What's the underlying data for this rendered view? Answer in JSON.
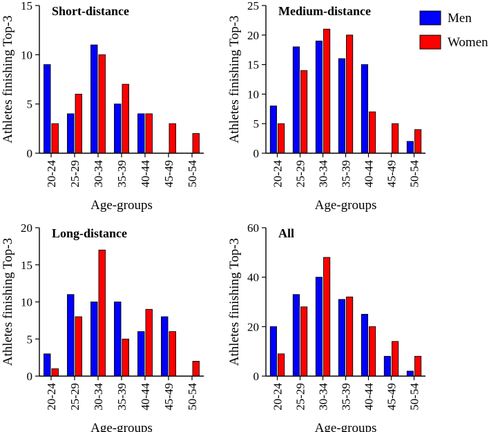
{
  "legend": {
    "items": [
      {
        "name": "Men",
        "color": "#0000ff"
      },
      {
        "name": "Women",
        "color": "#ff0000"
      }
    ]
  },
  "chart_data": [
    {
      "type": "bar",
      "title": "Short-distance",
      "xlabel": "Age-groups",
      "ylabel": "Athletes finishing Top-3",
      "categories": [
        "20-24",
        "25-29",
        "30-34",
        "35-39",
        "40-44",
        "45-49",
        "50-54"
      ],
      "ylim": [
        0,
        15
      ],
      "yticks": [
        0,
        5,
        10,
        15
      ],
      "series": [
        {
          "name": "Men",
          "color": "#0000ff",
          "values": [
            9,
            4,
            11,
            5,
            4,
            0,
            0
          ]
        },
        {
          "name": "Women",
          "color": "#ff0000",
          "values": [
            3,
            6,
            10,
            7,
            4,
            3,
            2
          ]
        }
      ]
    },
    {
      "type": "bar",
      "title": "Medium-distance",
      "xlabel": "Age-groups",
      "ylabel": "Athletes finishing Top-3",
      "categories": [
        "20-24",
        "25-29",
        "30-34",
        "35-39",
        "40-44",
        "45-49",
        "50-54"
      ],
      "ylim": [
        0,
        25
      ],
      "yticks": [
        0,
        5,
        10,
        15,
        20,
        25
      ],
      "series": [
        {
          "name": "Men",
          "color": "#0000ff",
          "values": [
            8,
            18,
            19,
            16,
            15,
            0,
            2
          ]
        },
        {
          "name": "Women",
          "color": "#ff0000",
          "values": [
            5,
            14,
            21,
            20,
            7,
            5,
            4
          ]
        }
      ]
    },
    {
      "type": "bar",
      "title": "Long-distance",
      "xlabel": "Age-groups",
      "ylabel": "Athletes finishing Top-3",
      "categories": [
        "20-24",
        "25-29",
        "30-34",
        "35-39",
        "40-44",
        "45-49",
        "50-54"
      ],
      "ylim": [
        0,
        20
      ],
      "yticks": [
        0,
        5,
        10,
        15,
        20
      ],
      "series": [
        {
          "name": "Men",
          "color": "#0000ff",
          "values": [
            3,
            11,
            10,
            10,
            6,
            8,
            0
          ]
        },
        {
          "name": "Women",
          "color": "#ff0000",
          "values": [
            1,
            8,
            17,
            5,
            9,
            6,
            2
          ]
        }
      ]
    },
    {
      "type": "bar",
      "title": "All",
      "xlabel": "Age-groups",
      "ylabel": "Athletes finishing Top-3",
      "categories": [
        "20-24",
        "25-29",
        "30-34",
        "35-39",
        "40-44",
        "45-49",
        "50-54"
      ],
      "ylim": [
        0,
        60
      ],
      "yticks": [
        0,
        20,
        40,
        60
      ],
      "series": [
        {
          "name": "Men",
          "color": "#0000ff",
          "values": [
            20,
            33,
            40,
            31,
            25,
            8,
            2
          ]
        },
        {
          "name": "Women",
          "color": "#ff0000",
          "values": [
            9,
            28,
            48,
            32,
            20,
            14,
            8
          ]
        }
      ]
    }
  ]
}
